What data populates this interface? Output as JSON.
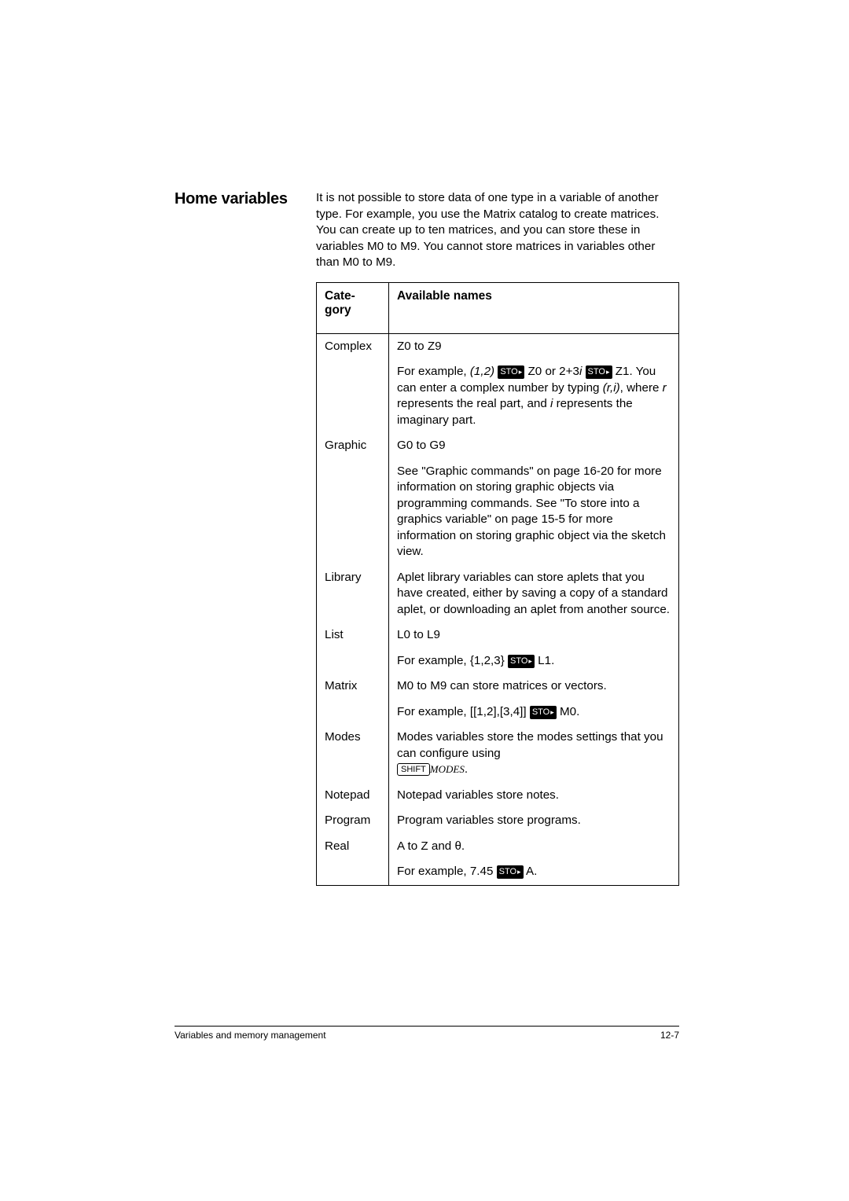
{
  "heading": "Home variables",
  "intro": "It is not possible to store data of one type in a variable of another type. For example, you use the Matrix catalog to create matrices. You can create up to ten matrices, and you can store these in variables M0 to M9. You cannot store matrices in variables other than M0 to M9.",
  "th_category": "Cate-gory",
  "th_names": "Available names",
  "rows": {
    "complex": {
      "cat": "Complex",
      "line1": "Z0 to Z9",
      "ex_a": "For example, ",
      "ex_b": "(1,2)",
      "ex_c": " Z0 or 2+3",
      "ex_d": "i",
      "ex_e": " Z1. You can enter a complex number by typing ",
      "ex_f": "(r,i)",
      "ex_g": ", where ",
      "ex_h": "r",
      "ex_i": " represents the real part, and ",
      "ex_j": "i",
      "ex_k": " represents the imaginary part."
    },
    "graphic": {
      "cat": "Graphic",
      "line1": "G0 to G9",
      "desc": "See \"Graphic commands\" on page 16-20 for more information on storing graphic objects via programming commands. See \"To store into a graphics variable\" on page 15-5 for more information on storing graphic object via the sketch view."
    },
    "library": {
      "cat": "Library",
      "desc": "Aplet library variables can store aplets that you have created, either by saving a copy of a standard aplet, or downloading an aplet from another source."
    },
    "list": {
      "cat": "List",
      "line1": "L0 to L9",
      "ex_a": "For example, {1,2,3} ",
      "ex_b": " L1."
    },
    "matrix": {
      "cat": "Matrix",
      "line1": " M0 to M9 can store matrices or vectors.",
      "ex_a": "For example, [[1,2],[3,4]] ",
      "ex_b": " M0."
    },
    "modes": {
      "cat": "Modes",
      "desc": "Modes variables store the modes settings that you can configure using ",
      "shift": "SHIFT",
      "modes": "MODES",
      "dot": "."
    },
    "notepad": {
      "cat": "Notepad",
      "desc": "Notepad variables store notes."
    },
    "program": {
      "cat": "Program",
      "desc": "Program variables store programs."
    },
    "real": {
      "cat": "Real",
      "line1": " A to Z and θ.",
      "ex_a": "For example, 7.45 ",
      "ex_b": " A."
    }
  },
  "sto": "STO",
  "footer_left": "Variables and memory management",
  "footer_right": "12-7"
}
